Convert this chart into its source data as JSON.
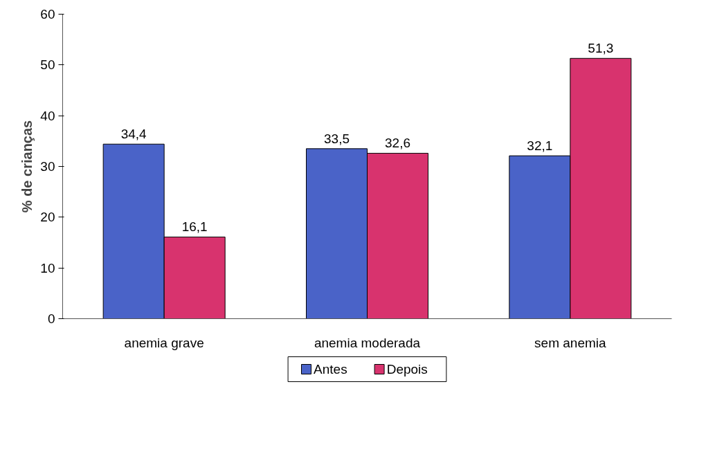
{
  "chart_data": {
    "type": "bar",
    "ylabel": "% de crianças",
    "categories": [
      "anemia grave",
      "anemia moderada",
      "sem anemia"
    ],
    "series": [
      {
        "name": "Antes",
        "color": "#4a63c8",
        "values": [
          34.4,
          33.5,
          32.1
        ],
        "value_labels": [
          "34,4",
          "33,5",
          "32,1"
        ]
      },
      {
        "name": "Depois",
        "color": "#d8336e",
        "values": [
          16.1,
          32.6,
          51.3
        ],
        "value_labels": [
          "16,1",
          "32,6",
          "51,3"
        ]
      }
    ],
    "ylim": [
      0,
      60
    ],
    "yticks": [
      0,
      10,
      20,
      30,
      40,
      50,
      60
    ],
    "grid": false,
    "legend": "bottom"
  }
}
